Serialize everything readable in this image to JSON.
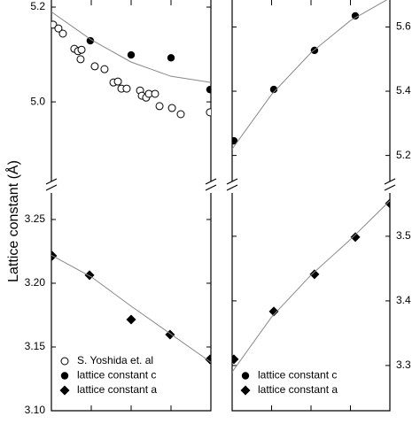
{
  "chart_data": [
    {
      "type": "scatter",
      "ylabel": "Lattice constant (Å)",
      "yaxis_side": "left",
      "xlim": [
        0,
        1
      ],
      "xticks": [
        0.25,
        0.5,
        0.75
      ],
      "ylim": [
        4.832,
        5.215
      ],
      "yticks": [
        {
          "value": 5,
          "label": "5.0"
        },
        5.2
      ],
      "series": [
        {
          "marker": "open-circle",
          "color": "#000000",
          "x": [
            0.011,
            0.044,
            0.072,
            0.144,
            0.167,
            0.183,
            0.189,
            0.272,
            0.333,
            0.389,
            0.417,
            0.439,
            0.472,
            0.556,
            0.567,
            0.594,
            0.611,
            0.65,
            0.678,
            0.756,
            0.811,
            0.994
          ],
          "values": [
            5.163,
            5.155,
            5.144,
            5.112,
            5.107,
            5.09,
            5.11,
            5.075,
            5.069,
            5.041,
            5.043,
            5.028,
            5.028,
            5.024,
            5.013,
            5.009,
            5.017,
            5.017,
            4.991,
            4.987,
            4.974,
            4.978
          ]
        },
        {
          "marker": "filled-circle",
          "color": "#000000",
          "x": [
            0.244,
            0.5,
            0.75,
            0.994
          ],
          "values": [
            5.129,
            5.099,
            5.093,
            5.026
          ]
        },
        {
          "marker": "line",
          "color": "#888888",
          "x": [
            0,
            0.25,
            0.5,
            0.75,
            1
          ],
          "values": [
            5.19,
            5.131,
            5.084,
            5.054,
            5.041
          ]
        }
      ]
    },
    {
      "type": "scatter",
      "yaxis_side": "left",
      "xlim": [
        0,
        1
      ],
      "xticks": [
        0.25,
        0.5,
        0.75
      ],
      "ylim": [
        3.1,
        3.2708
      ],
      "yticks": [
        {
          "value": 3.1,
          "label": "3.10"
        },
        3.15,
        {
          "value": 3.2,
          "label": "3.20"
        },
        3.25
      ],
      "series": [
        {
          "marker": "diamond",
          "color": "#000000",
          "x": [
            0.005,
            0.239,
            0.5,
            0.744,
            0.994
          ],
          "values": [
            3.2215,
            3.2063,
            3.1715,
            3.1597,
            3.1403
          ]
        },
        {
          "marker": "line",
          "color": "#888888",
          "x": [
            0,
            0.25,
            0.5,
            0.75,
            1
          ],
          "values": [
            3.222,
            3.205,
            3.182,
            3.16,
            3.138
          ]
        }
      ],
      "legend": "lower left",
      "legend_entries": [
        {
          "name": "S. Yoshida et. al",
          "marker": "open-circle"
        },
        {
          "name": "lattice constant c",
          "marker": "filled-circle"
        },
        {
          "name": "lattice constant a",
          "marker": "diamond"
        }
      ]
    },
    {
      "type": "scatter",
      "yaxis_side": "right",
      "xlim": [
        0,
        1
      ],
      "xticks": [
        0.25,
        0.5,
        0.75
      ],
      "ylim": [
        5.119,
        5.684
      ],
      "yticks": [
        5.2,
        5.4,
        5.6
      ],
      "series": [
        {
          "marker": "filled-circle",
          "color": "#000000",
          "x": [
            0.011,
            0.264,
            0.522,
            0.781
          ],
          "values": [
            5.2455,
            5.4055,
            5.527,
            5.6345
          ]
        },
        {
          "marker": "line",
          "color": "#888888",
          "x": [
            0,
            0.25,
            0.5,
            0.75,
            1
          ],
          "values": [
            5.22,
            5.39,
            5.52,
            5.62,
            5.69
          ]
        }
      ]
    },
    {
      "type": "scatter",
      "yaxis_side": "right",
      "xlim": [
        0,
        1
      ],
      "xticks": [
        0.25,
        0.5,
        0.75
      ],
      "ylim": [
        3.23,
        3.567
      ],
      "yticks": [
        3.3,
        3.4,
        3.5
      ],
      "series": [
        {
          "marker": "diamond",
          "color": "#000000",
          "x": [
            0.011,
            0.264,
            0.522,
            0.781,
            1
          ],
          "values": [
            3.3096,
            3.3836,
            3.4411,
            3.4986,
            3.5507
          ]
        },
        {
          "marker": "line",
          "color": "#888888",
          "x": [
            0,
            0.25,
            0.5,
            0.75,
            1
          ],
          "values": [
            3.29,
            3.375,
            3.44,
            3.495,
            3.555
          ]
        }
      ],
      "legend": "lower left",
      "legend_entries": [
        {
          "name": "lattice constant c",
          "marker": "filled-circle"
        },
        {
          "name": "lattice constant a",
          "marker": "diamond"
        }
      ]
    }
  ]
}
